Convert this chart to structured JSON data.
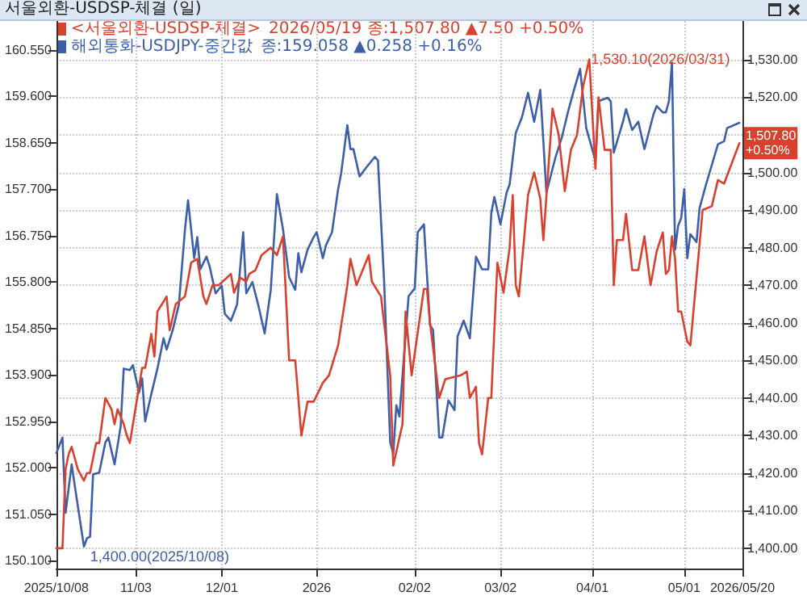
{
  "chart_data": {
    "type": "line",
    "title": "서울외환-USDSP-체결 (일)",
    "xlim": [
      "2025-10-08",
      "2026-05-20"
    ],
    "xticks": [
      {
        "value": "2025-10-08",
        "label": "2025/10/08"
      },
      {
        "value": "2025-11-03",
        "label": "11/03"
      },
      {
        "value": "2025-12-01",
        "label": "12/01"
      },
      {
        "value": "2026-01-01",
        "label": "2026"
      },
      {
        "value": "2026-02-02",
        "label": "02/02"
      },
      {
        "value": "2026-03-02",
        "label": "03/02"
      },
      {
        "value": "2026-04-01",
        "label": "04/01"
      },
      {
        "value": "2026-05-01",
        "label": "05/01"
      },
      {
        "value": "2026-05-20",
        "label": "2026/05/20"
      }
    ],
    "ylim": [
      149.94,
      161.14
    ],
    "yticks": [
      {
        "value": 150.1,
        "label": "150.100"
      },
      {
        "value": 151.05,
        "label": "151.050"
      },
      {
        "value": 152,
        "label": "152.000"
      },
      {
        "value": 152.95,
        "label": "152.950"
      },
      {
        "value": 153.9,
        "label": "153.900"
      },
      {
        "value": 154.85,
        "label": "154.850"
      },
      {
        "value": 155.8,
        "label": "155.800"
      },
      {
        "value": 156.75,
        "label": "156.750"
      },
      {
        "value": 157.7,
        "label": "157.700"
      },
      {
        "value": 158.65,
        "label": "158.650"
      },
      {
        "value": 159.6,
        "label": "159.600"
      },
      {
        "value": 160.55,
        "label": "160.550"
      }
    ],
    "y2lim": [
      1394.6,
      1540.3
    ],
    "y2ticks": [
      {
        "value": 1400,
        "label": "1,400.00"
      },
      {
        "value": 1410,
        "label": "1,410.00"
      },
      {
        "value": 1420,
        "label": "1,420.00"
      },
      {
        "value": 1430,
        "label": "1,430.00"
      },
      {
        "value": 1440,
        "label": "1,440.00"
      },
      {
        "value": 1450,
        "label": "1,450.00"
      },
      {
        "value": 1460,
        "label": "1,460.00"
      },
      {
        "value": 1470,
        "label": "1,470.00"
      },
      {
        "value": 1480,
        "label": "1,480.00"
      },
      {
        "value": 1490,
        "label": "1,490.00"
      },
      {
        "value": 1500,
        "label": "1,500.00"
      },
      {
        "value": 1510,
        "label": null
      },
      {
        "value": 1520,
        "label": "1,520.00"
      },
      {
        "value": 1530,
        "label": "1,530.00"
      }
    ],
    "grid": true,
    "legend": "top left",
    "marker": "none",
    "line_style": "solid",
    "annotations": [
      "2026/05/19 종:1,507.80 ▲7.50 +0.50%",
      "종:159.058 ▲0.258 +0.16%",
      "1,400.00(2025/10/08)",
      "1,530.10(2026/03/31)",
      "1,507.80\n+0.50%"
    ],
    "series": [
      {
        "name": "<서울외환-USDSP-체결>",
        "color": "#d9412f",
        "axis": "y2",
        "x": [
          "2025-10-08",
          "2025-10-10",
          "2025-10-11",
          "2025-10-12",
          "2025-10-13",
          "2025-10-15",
          "2025-10-17",
          "2025-10-18",
          "2025-10-19",
          "2025-10-21",
          "2025-10-22",
          "2025-10-24",
          "2025-10-26",
          "2025-10-27",
          "2025-10-28",
          "2025-10-30",
          "2025-10-31",
          "2025-11-01",
          "2025-11-02",
          "2025-11-05",
          "2025-11-06",
          "2025-11-08",
          "2025-11-09",
          "2025-11-10",
          "2025-11-13",
          "2025-11-14",
          "2025-11-16",
          "2025-11-19",
          "2025-11-21",
          "2025-11-23",
          "2025-11-25",
          "2025-11-26",
          "2025-11-28",
          "2025-11-30",
          "2025-12-04",
          "2025-12-05",
          "2025-12-07",
          "2025-12-09",
          "2025-12-10",
          "2025-12-12",
          "2025-12-14",
          "2025-12-17",
          "2025-12-19",
          "2025-12-21",
          "2025-12-23",
          "2025-12-25",
          "2025-12-27",
          "2025-12-29",
          "2025-12-31",
          "2026-01-03",
          "2026-01-05",
          "2026-01-08",
          "2026-01-11",
          "2026-01-12",
          "2026-01-14",
          "2026-01-16",
          "2026-01-18",
          "2026-01-19",
          "2026-01-22",
          "2026-01-25",
          "2026-01-26",
          "2026-01-29",
          "2026-01-30",
          "2026-02-01",
          "2026-02-05",
          "2026-02-06",
          "2026-02-07",
          "2026-02-10",
          "2026-02-12",
          "2026-02-17",
          "2026-02-19",
          "2026-02-20",
          "2026-02-22",
          "2026-02-23",
          "2026-02-24",
          "2026-02-26",
          "2026-02-27",
          "2026-03-01",
          "2026-03-03",
          "2026-03-05",
          "2026-03-06",
          "2026-03-07",
          "2026-03-08",
          "2026-03-11",
          "2026-03-13",
          "2026-03-15",
          "2026-03-16",
          "2026-03-19",
          "2026-03-21",
          "2026-03-23",
          "2026-03-25",
          "2026-03-27",
          "2026-03-29",
          "2026-03-31",
          "2026-04-02",
          "2026-04-03",
          "2026-04-05",
          "2026-04-07",
          "2026-04-08",
          "2026-04-09",
          "2026-04-11",
          "2026-04-12",
          "2026-04-14",
          "2026-04-16",
          "2026-04-18",
          "2026-04-20",
          "2026-04-22",
          "2026-04-24",
          "2026-04-25",
          "2026-04-26",
          "2026-04-27",
          "2026-04-28",
          "2026-04-29",
          "2026-04-30",
          "2026-05-02",
          "2026-05-03",
          "2026-05-05",
          "2026-05-07",
          "2026-05-10",
          "2026-05-12",
          "2026-05-14",
          "2026-05-19"
        ],
        "values": [
          1400,
          1400,
          1421,
          1425,
          1427,
          1421,
          1418,
          1420,
          1420,
          1428,
          1428,
          1440,
          1437,
          1433,
          1437,
          1433,
          1430,
          1428,
          1433,
          1448,
          1448,
          1457,
          1451,
          1463,
          1467,
          1458,
          1465,
          1467,
          1476,
          1477,
          1467,
          1465,
          1470,
          1470,
          1473,
          1468,
          1472,
          1471,
          1473,
          1474,
          1478,
          1480,
          1478,
          1483,
          1450,
          1450,
          1430,
          1439,
          1439,
          1444,
          1446,
          1454,
          1470,
          1477,
          1470,
          1474,
          1478,
          1471,
          1467,
          1446,
          1422,
          1433,
          1463,
          1446,
          1469,
          1469,
          1460,
          1440,
          1445,
          1446,
          1447,
          1440,
          1443,
          1428,
          1425,
          1440,
          1440,
          1476,
          1468,
          1480,
          1494,
          1470,
          1467,
          1494,
          1500,
          1493,
          1482,
          1517,
          1510,
          1495,
          1506,
          1510,
          1523,
          1530.1,
          1501,
          1520,
          1506,
          1506,
          1470,
          1482,
          1482,
          1489,
          1474,
          1474,
          1483,
          1470,
          1479,
          1484,
          1473,
          1474,
          1483,
          1477,
          1463,
          1463,
          1455,
          1454,
          1472,
          1490,
          1491,
          1498,
          1497,
          1507.8
        ]
      },
      {
        "name": "해외통화-USDJPY-중간값",
        "color": "#3d5ea8",
        "x": [
          "2025-10-08",
          "2025-10-10",
          "2025-10-11",
          "2025-10-13",
          "2025-10-14",
          "2025-10-17",
          "2025-10-18",
          "2025-10-19",
          "2025-10-20",
          "2025-10-22",
          "2025-10-24",
          "2025-10-25",
          "2025-10-27",
          "2025-10-29",
          "2025-10-30",
          "2025-11-01",
          "2025-11-02",
          "2025-11-04",
          "2025-11-05",
          "2025-11-06",
          "2025-11-08",
          "2025-11-10",
          "2025-11-12",
          "2025-11-13",
          "2025-11-15",
          "2025-11-17",
          "2025-11-19",
          "2025-11-20",
          "2025-11-22",
          "2025-11-23",
          "2025-11-24",
          "2025-11-26",
          "2025-11-27",
          "2025-11-29",
          "2025-12-01",
          "2025-12-02",
          "2025-12-04",
          "2025-12-06",
          "2025-12-08",
          "2025-12-09",
          "2025-12-11",
          "2025-12-13",
          "2025-12-15",
          "2025-12-17",
          "2025-12-19",
          "2025-12-21",
          "2025-12-23",
          "2025-12-25",
          "2025-12-26",
          "2025-12-27",
          "2025-12-29",
          "2025-12-31",
          "2026-01-01",
          "2026-01-03",
          "2026-01-04",
          "2026-01-06",
          "2026-01-08",
          "2026-01-09",
          "2026-01-11",
          "2026-01-12",
          "2026-01-13",
          "2026-01-15",
          "2026-01-17",
          "2026-01-20",
          "2026-01-21",
          "2026-01-23",
          "2026-01-25",
          "2026-01-26",
          "2026-01-27",
          "2026-01-28",
          "2026-01-31",
          "2026-02-02",
          "2026-02-03",
          "2026-02-05",
          "2026-02-07",
          "2026-02-08",
          "2026-02-10",
          "2026-02-11",
          "2026-02-13",
          "2026-02-15",
          "2026-02-16",
          "2026-02-18",
          "2026-02-20",
          "2026-02-22",
          "2026-02-24",
          "2026-02-26",
          "2026-02-27",
          "2026-02-28",
          "2026-03-02",
          "2026-03-04",
          "2026-03-05",
          "2026-03-07",
          "2026-03-09",
          "2026-03-11",
          "2026-03-13",
          "2026-03-15",
          "2026-03-17",
          "2026-03-20",
          "2026-03-22",
          "2026-03-24",
          "2026-03-26",
          "2026-03-28",
          "2026-03-30",
          "2026-04-02",
          "2026-04-03",
          "2026-04-06",
          "2026-04-07",
          "2026-04-08",
          "2026-04-11",
          "2026-04-12",
          "2026-04-14",
          "2026-04-16",
          "2026-04-18",
          "2026-04-21",
          "2026-04-22",
          "2026-04-24",
          "2026-04-25",
          "2026-04-26",
          "2026-04-27",
          "2026-04-28",
          "2026-04-29",
          "2026-04-30",
          "2026-05-01",
          "2026-05-02",
          "2026-05-03",
          "2026-05-05",
          "2026-05-06",
          "2026-05-08",
          "2026-05-12",
          "2026-05-14",
          "2026-05-15",
          "2026-05-19"
        ],
        "values": [
          152.3,
          152.62,
          151.08,
          152.07,
          151.64,
          150.39,
          150.56,
          150.59,
          151.87,
          151.9,
          152.52,
          152.62,
          152.07,
          152.85,
          154.03,
          154.0,
          154.1,
          153.54,
          153.83,
          152.95,
          153.51,
          154.03,
          154.65,
          154.42,
          154.82,
          155.34,
          156.88,
          157.47,
          156.29,
          156.72,
          156.06,
          156.32,
          156.13,
          155.57,
          155.73,
          155.15,
          155.01,
          155.34,
          156.82,
          155.57,
          155.8,
          155.31,
          154.75,
          155.64,
          157.6,
          156.88,
          155.9,
          155.64,
          156.39,
          156.0,
          156.46,
          156.72,
          156.82,
          156.29,
          156.55,
          156.82,
          157.7,
          158.03,
          159.01,
          158.52,
          158.52,
          157.96,
          158.13,
          158.36,
          158.29,
          155.83,
          152.52,
          152.29,
          153.28,
          153.05,
          155.51,
          155.67,
          156.82,
          156.98,
          154.92,
          154.82,
          152.62,
          152.62,
          153.38,
          153.18,
          154.69,
          155.01,
          154.65,
          156.32,
          156.06,
          156.06,
          157.21,
          157.54,
          156.98,
          157.63,
          157.8,
          158.85,
          159.17,
          159.67,
          159.08,
          159.73,
          157.63,
          158.36,
          158.75,
          159.27,
          159.73,
          160.16,
          158.95,
          158.29,
          159.5,
          159.57,
          159.5,
          158.45,
          159.08,
          159.34,
          158.91,
          159.08,
          158.52,
          159.24,
          159.4,
          159.27,
          159.27,
          159.5,
          160.29,
          156.46,
          156.95,
          157.11,
          157.7,
          156.29,
          156.78,
          156.62,
          157.31,
          157.77,
          158.62,
          158.68,
          158.95,
          159.058
        ]
      }
    ]
  }
}
